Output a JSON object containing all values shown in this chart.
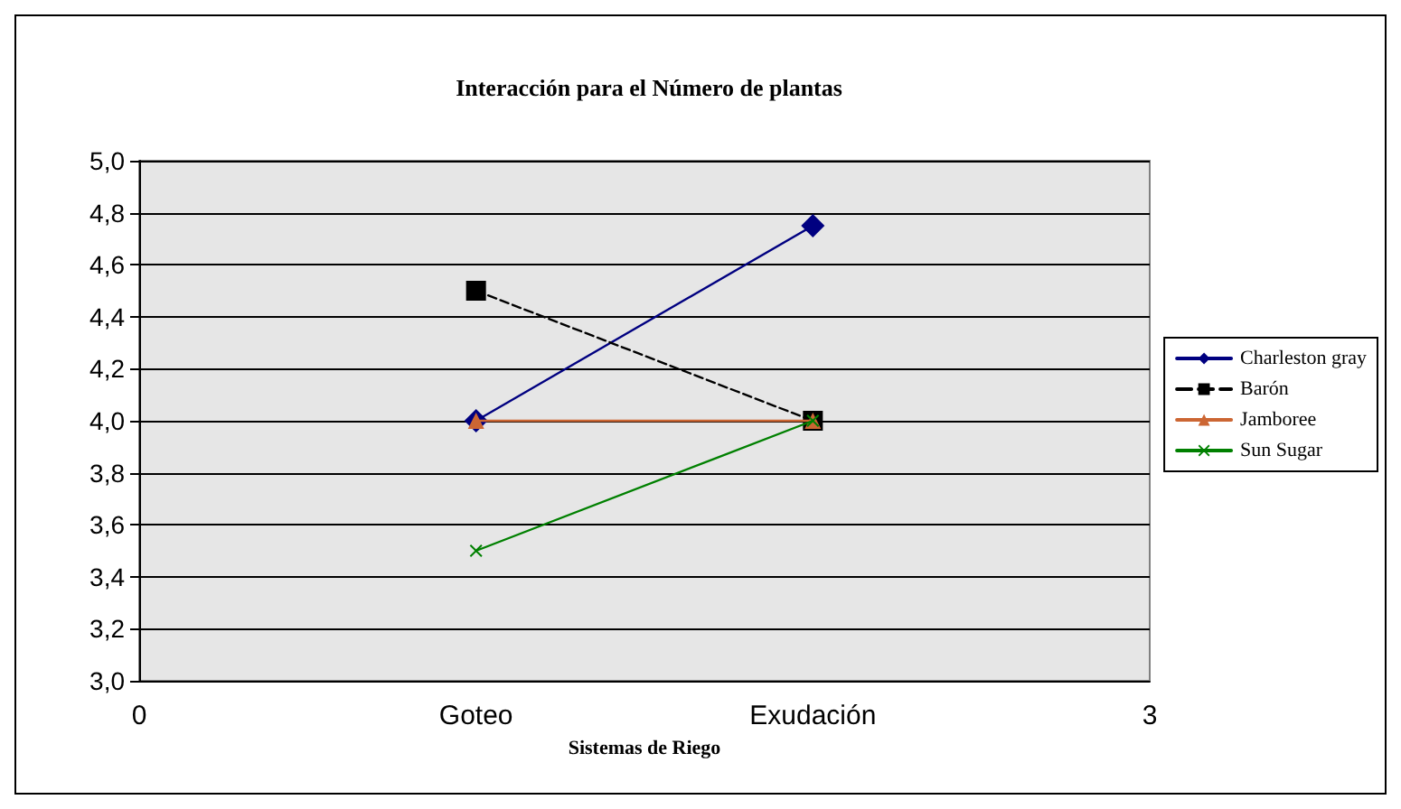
{
  "chart_data": {
    "type": "line",
    "title": "Interacción para el Número de plantas",
    "xlabel": "Sistemas de Riego",
    "x": [
      1,
      2
    ],
    "xlim": [
      0,
      3
    ],
    "xticks": [
      0,
      {
        "value": 1,
        "label": "Goteo"
      },
      {
        "value": 2,
        "label": "Exudación"
      },
      3
    ],
    "ylim": [
      3,
      5
    ],
    "yticks": [
      {
        "value": 3,
        "label": "3,0"
      },
      {
        "value": 3.2,
        "label": "3,2"
      },
      {
        "value": 3.4,
        "label": "3,4"
      },
      {
        "value": 3.6,
        "label": "3,6"
      },
      {
        "value": 3.8,
        "label": "3,8"
      },
      {
        "value": 4,
        "label": "4,0"
      },
      {
        "value": 4.2,
        "label": "4,2"
      },
      {
        "value": 4.4,
        "label": "4,4"
      },
      {
        "value": 4.6,
        "label": "4,6"
      },
      {
        "value": 4.8,
        "label": "4,8"
      },
      {
        "value": 5,
        "label": "5,0"
      }
    ],
    "grid": "y",
    "legend": "right",
    "series": [
      {
        "name": "Charleston gray",
        "color": "#000080",
        "values": [
          4.0,
          4.75
        ],
        "marker": "diamond",
        "line_style": "solid"
      },
      {
        "name": "Barón",
        "color": "#000000",
        "values": [
          4.5,
          4.0
        ],
        "marker": "square",
        "line_style": "dashed"
      },
      {
        "name": "Jamboree",
        "color": "#cc6633",
        "values": [
          4.0,
          4.0
        ],
        "marker": "triangle",
        "line_style": "solid"
      },
      {
        "name": "Sun Sugar",
        "color": "#008000",
        "values": [
          3.5,
          4.0
        ],
        "marker": "cross",
        "line_style": "solid"
      }
    ]
  }
}
